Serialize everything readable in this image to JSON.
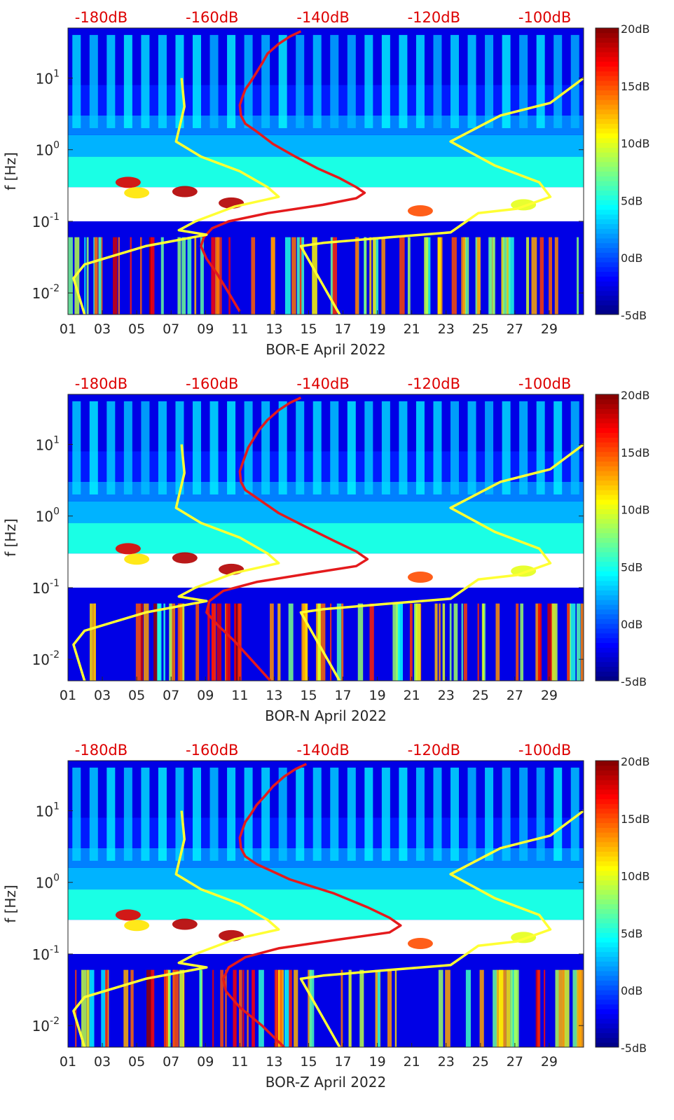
{
  "chart_data": [
    {
      "type": "heatmap",
      "subtype": "spectrogram",
      "title": "",
      "xlabel": "BOR-E April 2022",
      "ylabel": "f [Hz]",
      "yscale": "log",
      "ylim": [
        0.005,
        50
      ],
      "xlim": [
        1,
        31
      ],
      "x_ticks": [
        "01",
        "03",
        "05",
        "07",
        "09",
        "11",
        "13",
        "15",
        "17",
        "19",
        "21",
        "23",
        "25",
        "27",
        "29"
      ],
      "y_ticks": [
        {
          "label": "10",
          "exp": "-2"
        },
        {
          "label": "10",
          "exp": "-1"
        },
        {
          "label": "10",
          "exp": "0"
        },
        {
          "label": "10",
          "exp": "1"
        }
      ],
      "top_axis_ticks": [
        "-180dB",
        "-160dB",
        "-140dB",
        "-120dB",
        "-100dB"
      ],
      "top_axis_range_db": [
        -186,
        -93
      ],
      "colorbar": {
        "ticks": [
          "-5dB",
          "0dB",
          "5dB",
          "10dB",
          "15dB",
          "20dB"
        ],
        "range_db": [
          -5,
          20
        ],
        "colormap": "jet"
      },
      "colors": {
        "red_curve": "#e41a1c",
        "yellow_curve": "#ffff33",
        "top_axis_text": "#dd0000"
      },
      "series": [
        {
          "color": "red",
          "axis": "top-dB",
          "points": [
            [
              -144,
              45
            ],
            [
              -146,
              38
            ],
            [
              -148,
              30
            ],
            [
              -150,
              22
            ],
            [
              -151,
              16
            ],
            [
              -152,
              12
            ],
            [
              -153,
              9
            ],
            [
              -154,
              7
            ],
            [
              -154.5,
              5.5
            ],
            [
              -155,
              4.2
            ],
            [
              -154.8,
              3
            ],
            [
              -154,
              2.3
            ],
            [
              -152,
              1.8
            ],
            [
              -149,
              1.2
            ],
            [
              -145,
              0.8
            ],
            [
              -141,
              0.55
            ],
            [
              -137,
              0.4
            ],
            [
              -134,
              0.3
            ],
            [
              -132.5,
              0.25
            ],
            [
              -134,
              0.21
            ],
            [
              -140,
              0.17
            ],
            [
              -150,
              0.13
            ],
            [
              -157,
              0.1
            ],
            [
              -160,
              0.08
            ],
            [
              -161.5,
              0.06
            ],
            [
              -162,
              0.045
            ],
            [
              -161,
              0.03
            ],
            [
              -159,
              0.018
            ],
            [
              -157,
              0.01
            ],
            [
              -155,
              0.0055
            ]
          ]
        },
        {
          "color": "yellow",
          "name_hint": "low",
          "axis": "top-dB",
          "points": [
            [
              -165.5,
              10
            ],
            [
              -165,
              4
            ],
            [
              -166.5,
              1.3
            ],
            [
              -162,
              0.8
            ],
            [
              -155,
              0.5
            ],
            [
              -150,
              0.3
            ],
            [
              -148,
              0.22
            ],
            [
              -156,
              0.16
            ],
            [
              -163,
              0.1
            ],
            [
              -166,
              0.075
            ],
            [
              -161,
              0.065
            ],
            [
              -172,
              0.045
            ],
            [
              -183,
              0.025
            ],
            [
              -185,
              0.016
            ],
            [
              -183,
              0.005
            ]
          ]
        },
        {
          "color": "yellow",
          "name_hint": "high",
          "axis": "top-dB",
          "points": [
            [
              -93,
              10
            ],
            [
              -99,
              4.5
            ],
            [
              -108,
              3
            ],
            [
              -117,
              1.3
            ],
            [
              -109,
              0.6
            ],
            [
              -101,
              0.35
            ],
            [
              -99,
              0.22
            ],
            [
              -105,
              0.15
            ],
            [
              -112,
              0.13
            ],
            [
              -117,
              0.07
            ],
            [
              -128,
              0.06
            ],
            [
              -140,
              0.05
            ],
            [
              -144,
              0.045
            ],
            [
              -137,
              0.005
            ]
          ]
        }
      ]
    },
    {
      "type": "heatmap",
      "subtype": "spectrogram",
      "title": "",
      "xlabel": "BOR-N April 2022",
      "ylabel": "f [Hz]",
      "yscale": "log",
      "ylim": [
        0.005,
        50
      ],
      "xlim": [
        1,
        31
      ],
      "x_ticks": [
        "01",
        "03",
        "05",
        "07",
        "09",
        "11",
        "13",
        "15",
        "17",
        "19",
        "21",
        "23",
        "25",
        "27",
        "29"
      ],
      "y_ticks": [
        {
          "label": "10",
          "exp": "-2"
        },
        {
          "label": "10",
          "exp": "-1"
        },
        {
          "label": "10",
          "exp": "0"
        },
        {
          "label": "10",
          "exp": "1"
        }
      ],
      "top_axis_ticks": [
        "-180dB",
        "-160dB",
        "-140dB",
        "-120dB",
        "-100dB"
      ],
      "top_axis_range_db": [
        -186,
        -93
      ],
      "colorbar": {
        "ticks": [
          "-5dB",
          "0dB",
          "5dB",
          "10dB",
          "15dB",
          "20dB"
        ],
        "range_db": [
          -5,
          20
        ],
        "colormap": "jet"
      },
      "colors": {
        "red_curve": "#e41a1c",
        "yellow_curve": "#ffff33",
        "top_axis_text": "#dd0000"
      },
      "series": [
        {
          "color": "red",
          "axis": "top-dB",
          "points": [
            [
              -144,
              45
            ],
            [
              -146,
              38
            ],
            [
              -148,
              30
            ],
            [
              -150,
              22
            ],
            [
              -151.5,
              16
            ],
            [
              -152.5,
              12
            ],
            [
              -153.5,
              9
            ],
            [
              -154,
              7
            ],
            [
              -154.5,
              5.5
            ],
            [
              -155,
              4.2
            ],
            [
              -154.8,
              3
            ],
            [
              -154,
              2.3
            ],
            [
              -152,
              1.8
            ],
            [
              -148,
              1.1
            ],
            [
              -143,
              0.7
            ],
            [
              -138,
              0.45
            ],
            [
              -134,
              0.32
            ],
            [
              -132,
              0.25
            ],
            [
              -134,
              0.2
            ],
            [
              -142,
              0.16
            ],
            [
              -152,
              0.12
            ],
            [
              -158,
              0.09
            ],
            [
              -160.5,
              0.065
            ],
            [
              -161,
              0.045
            ],
            [
              -159,
              0.03
            ],
            [
              -156,
              0.018
            ],
            [
              -153,
              0.01
            ],
            [
              -149.5,
              0.005
            ]
          ]
        },
        {
          "color": "yellow",
          "name_hint": "low",
          "axis": "top-dB",
          "points": [
            [
              -165.5,
              10
            ],
            [
              -165,
              4
            ],
            [
              -166.5,
              1.3
            ],
            [
              -162,
              0.8
            ],
            [
              -155,
              0.5
            ],
            [
              -150,
              0.3
            ],
            [
              -148,
              0.22
            ],
            [
              -156,
              0.16
            ],
            [
              -163,
              0.1
            ],
            [
              -166,
              0.075
            ],
            [
              -161,
              0.065
            ],
            [
              -172,
              0.045
            ],
            [
              -183,
              0.025
            ],
            [
              -185,
              0.016
            ],
            [
              -183,
              0.005
            ]
          ]
        },
        {
          "color": "yellow",
          "name_hint": "high",
          "axis": "top-dB",
          "points": [
            [
              -93,
              10
            ],
            [
              -99,
              4.5
            ],
            [
              -108,
              3
            ],
            [
              -117,
              1.3
            ],
            [
              -109,
              0.6
            ],
            [
              -101,
              0.35
            ],
            [
              -99,
              0.22
            ],
            [
              -105,
              0.15
            ],
            [
              -112,
              0.13
            ],
            [
              -117,
              0.07
            ],
            [
              -128,
              0.06
            ],
            [
              -140,
              0.05
            ],
            [
              -144,
              0.045
            ],
            [
              -137,
              0.005
            ]
          ]
        }
      ]
    },
    {
      "type": "heatmap",
      "subtype": "spectrogram",
      "title": "",
      "xlabel": "BOR-Z April 2022",
      "ylabel": "f [Hz]",
      "yscale": "log",
      "ylim": [
        0.005,
        50
      ],
      "xlim": [
        1,
        31
      ],
      "x_ticks": [
        "01",
        "03",
        "05",
        "07",
        "09",
        "11",
        "13",
        "15",
        "17",
        "19",
        "21",
        "23",
        "25",
        "27",
        "29"
      ],
      "y_ticks": [
        {
          "label": "10",
          "exp": "-2"
        },
        {
          "label": "10",
          "exp": "-1"
        },
        {
          "label": "10",
          "exp": "0"
        },
        {
          "label": "10",
          "exp": "1"
        }
      ],
      "top_axis_ticks": [
        "-180dB",
        "-160dB",
        "-140dB",
        "-120dB",
        "-100dB"
      ],
      "top_axis_range_db": [
        -186,
        -93
      ],
      "colorbar": {
        "ticks": [
          "-5dB",
          "0dB",
          "5dB",
          "10dB",
          "15dB",
          "20dB"
        ],
        "range_db": [
          -5,
          20
        ],
        "colormap": "jet"
      },
      "colors": {
        "red_curve": "#e41a1c",
        "yellow_curve": "#ffff33",
        "top_axis_text": "#dd0000"
      },
      "series": [
        {
          "color": "red",
          "axis": "top-dB",
          "points": [
            [
              -143,
              45
            ],
            [
              -145,
              38
            ],
            [
              -147,
              30
            ],
            [
              -149,
              22
            ],
            [
              -150.5,
              16
            ],
            [
              -152,
              12
            ],
            [
              -153,
              9
            ],
            [
              -154,
              7
            ],
            [
              -154.5,
              5.5
            ],
            [
              -155,
              4.2
            ],
            [
              -154.8,
              3
            ],
            [
              -154,
              2.3
            ],
            [
              -152,
              1.8
            ],
            [
              -146,
              1.1
            ],
            [
              -138,
              0.7
            ],
            [
              -132,
              0.45
            ],
            [
              -128,
              0.32
            ],
            [
              -126,
              0.25
            ],
            [
              -128,
              0.2
            ],
            [
              -137,
              0.16
            ],
            [
              -148,
              0.12
            ],
            [
              -154,
              0.09
            ],
            [
              -157,
              0.065
            ],
            [
              -158,
              0.045
            ],
            [
              -157.5,
              0.03
            ],
            [
              -155,
              0.018
            ],
            [
              -151,
              0.01
            ],
            [
              -147,
              0.005
            ]
          ]
        },
        {
          "color": "yellow",
          "name_hint": "low",
          "axis": "top-dB",
          "points": [
            [
              -165.5,
              10
            ],
            [
              -165,
              4
            ],
            [
              -166.5,
              1.3
            ],
            [
              -162,
              0.8
            ],
            [
              -155,
              0.5
            ],
            [
              -150,
              0.3
            ],
            [
              -148,
              0.22
            ],
            [
              -156,
              0.16
            ],
            [
              -163,
              0.1
            ],
            [
              -166,
              0.075
            ],
            [
              -161,
              0.065
            ],
            [
              -172,
              0.045
            ],
            [
              -183,
              0.025
            ],
            [
              -185,
              0.016
            ],
            [
              -183,
              0.005
            ]
          ]
        },
        {
          "color": "yellow",
          "name_hint": "high",
          "axis": "top-dB",
          "points": [
            [
              -93,
              10
            ],
            [
              -99,
              4.5
            ],
            [
              -108,
              3
            ],
            [
              -117,
              1.3
            ],
            [
              -109,
              0.6
            ],
            [
              -101,
              0.35
            ],
            [
              -99,
              0.22
            ],
            [
              -105,
              0.15
            ],
            [
              -112,
              0.13
            ],
            [
              -117,
              0.07
            ],
            [
              -128,
              0.06
            ],
            [
              -140,
              0.05
            ],
            [
              -144,
              0.045
            ],
            [
              -137,
              0.005
            ]
          ]
        }
      ]
    }
  ]
}
